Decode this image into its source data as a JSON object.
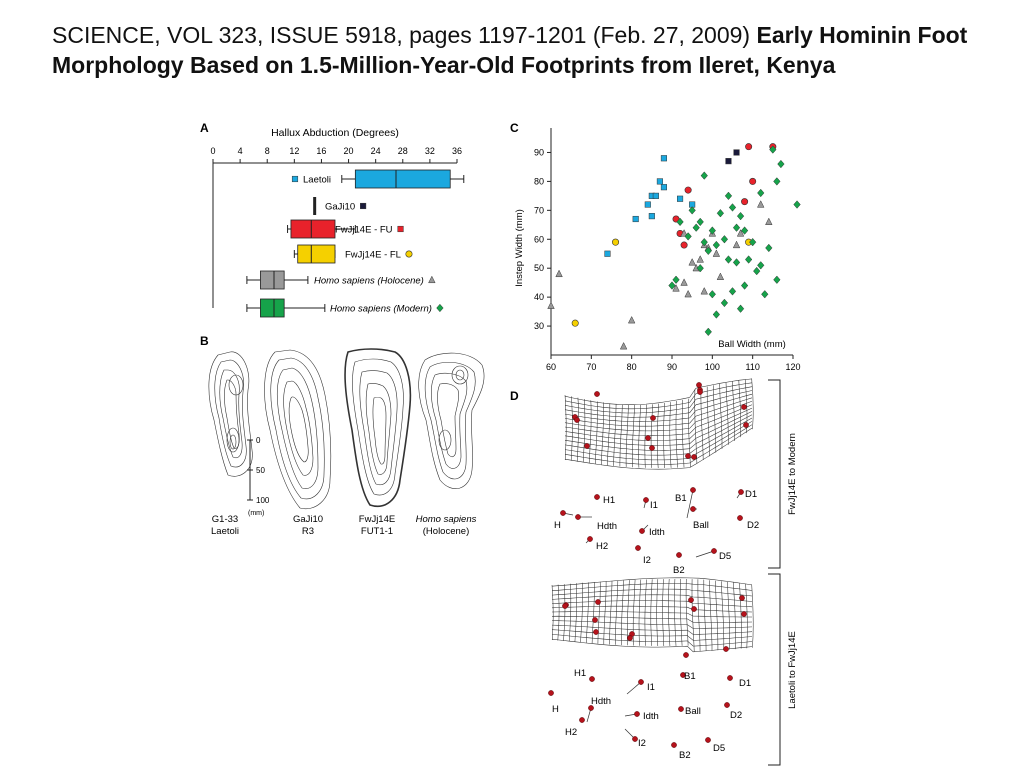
{
  "header": {
    "citation": "SCIENCE, VOL 323, ISSUE 5918,  pages 1197-1201 (Feb. 27, 2009) ",
    "title": "Early Hominin Foot Morphology Based on 1.5-Million-Year-Old Footprints from Ileret, Kenya"
  },
  "panel_labels": {
    "a": "A",
    "b": "B",
    "c": "C",
    "d": "D"
  },
  "colors": {
    "laetoli": "#1ba8df",
    "gaji10": "#1a1a3a",
    "fu": "#e8222b",
    "fl": "#f5d000",
    "holocene": "#999999",
    "modern": "#16a34a",
    "landmark": "#b5121b"
  },
  "chart_data": [
    {
      "type": "box",
      "title": "Hallux Abduction (Degrees)",
      "xlim": [
        0,
        36
      ],
      "ticks": [
        0,
        4,
        8,
        12,
        16,
        20,
        24,
        28,
        32,
        36
      ],
      "series": [
        {
          "name": "Laetoli",
          "min": 19,
          "q1": 21,
          "median": 27,
          "q3": 35,
          "max": 37,
          "marker": "square"
        },
        {
          "name": "GaJi10",
          "min": 15,
          "q1": 15,
          "median": 15,
          "q3": 15,
          "max": 15,
          "marker": "square"
        },
        {
          "name": "FwJj14E - FU",
          "min": 11,
          "q1": 11.5,
          "median": 14.5,
          "q3": 18,
          "max": 21,
          "marker": "square"
        },
        {
          "name": "FwJj14E - FL",
          "min": 12,
          "q1": 12.5,
          "median": 14.5,
          "q3": 18,
          "max": 18,
          "marker": "circle"
        },
        {
          "name": "Homo sapiens (Holocene)",
          "min": 5,
          "q1": 7,
          "median": 9,
          "q3": 10.5,
          "max": 14,
          "marker": "triangle"
        },
        {
          "name": "Homo sapiens (Modern)",
          "min": 5,
          "q1": 7,
          "median": 9,
          "q3": 10.5,
          "max": 16.5,
          "marker": "diamond"
        }
      ]
    },
    {
      "type": "scatter",
      "xlabel": "Ball Width (mm)",
      "ylabel": "Instep Width (mm)",
      "xlim": [
        60,
        120
      ],
      "ylim": [
        20,
        95
      ],
      "xticks": [
        60,
        70,
        80,
        90,
        100,
        110,
        120
      ],
      "yticks": [
        30,
        40,
        50,
        60,
        70,
        80,
        90
      ],
      "series": [
        {
          "name": "Laetoli",
          "marker": "square",
          "points": [
            [
              88,
              88
            ],
            [
              87,
              80
            ],
            [
              88,
              78
            ],
            [
              85,
              75
            ],
            [
              84,
              72
            ],
            [
              85,
              68
            ],
            [
              81,
              67
            ],
            [
              92,
              74
            ],
            [
              95,
              72
            ],
            [
              86,
              75
            ],
            [
              74,
              55
            ]
          ]
        },
        {
          "name": "GaJi10",
          "marker": "square",
          "points": [
            [
              106,
              90
            ],
            [
              104,
              87
            ]
          ]
        },
        {
          "name": "FwJj14E - FU",
          "marker": "circle",
          "points": [
            [
              115,
              92
            ],
            [
              109,
              92
            ],
            [
              110,
              80
            ],
            [
              108,
              73
            ],
            [
              94,
              77
            ],
            [
              91,
              67
            ],
            [
              92,
              62
            ],
            [
              93,
              58
            ]
          ]
        },
        {
          "name": "FwJj14E - FL",
          "marker": "circle",
          "points": [
            [
              76,
              59
            ],
            [
              66,
              31
            ],
            [
              109,
              59
            ]
          ]
        },
        {
          "name": "Homo sapiens (Holocene)",
          "marker": "triangle",
          "points": [
            [
              62,
              48
            ],
            [
              60,
              37
            ],
            [
              78,
              23
            ],
            [
              80,
              32
            ],
            [
              93,
              62
            ],
            [
              98,
              58
            ],
            [
              99,
              57
            ],
            [
              100,
              62
            ],
            [
              95,
              52
            ],
            [
              96,
              50
            ],
            [
              97,
              53
            ],
            [
              101,
              55
            ],
            [
              93,
              45
            ],
            [
              94,
              41
            ],
            [
              98,
              42
            ],
            [
              102,
              47
            ],
            [
              91,
              43
            ],
            [
              107,
              62
            ],
            [
              112,
              72
            ],
            [
              114,
              66
            ],
            [
              106,
              58
            ]
          ]
        },
        {
          "name": "Homo sapiens (Modern)",
          "marker": "diamond",
          "points": [
            [
              98,
              82
            ],
            [
              104,
              75
            ],
            [
              102,
              69
            ],
            [
              95,
              70
            ],
            [
              97,
              66
            ],
            [
              100,
              63
            ],
            [
              103,
              60
            ],
            [
              98,
              59
            ],
            [
              96,
              64
            ],
            [
              94,
              61
            ],
            [
              92,
              66
            ],
            [
              105,
              71
            ],
            [
              107,
              68
            ],
            [
              106,
              64
            ],
            [
              108,
              63
            ],
            [
              110,
              59
            ],
            [
              109,
              53
            ],
            [
              111,
              49
            ],
            [
              108,
              44
            ],
            [
              105,
              42
            ],
            [
              103,
              38
            ],
            [
              101,
              34
            ],
            [
              99,
              28
            ],
            [
              112,
              51
            ],
            [
              116,
              46
            ],
            [
              112,
              76
            ],
            [
              116,
              80
            ],
            [
              117,
              86
            ],
            [
              121,
              72
            ],
            [
              115,
              91
            ],
            [
              101,
              58
            ],
            [
              99,
              56
            ],
            [
              97,
              50
            ],
            [
              104,
              53
            ],
            [
              106,
              52
            ],
            [
              90,
              44
            ],
            [
              91,
              46
            ],
            [
              100,
              41
            ],
            [
              107,
              36
            ],
            [
              113,
              41
            ],
            [
              114,
              57
            ]
          ]
        }
      ]
    }
  ],
  "panel_b": {
    "labels": [
      {
        "line1": "G1-33",
        "line2": "Laetoli"
      },
      {
        "line1": "GaJi10",
        "line2": "R3"
      },
      {
        "line1": "FwJj14E",
        "line2": "FUT1-1"
      },
      {
        "line1": "Homo sapiens",
        "line2": "(Holocene)"
      }
    ],
    "scale_ticks": [
      "0",
      "50",
      "100"
    ],
    "scale_unit": "(mm)"
  },
  "panel_d": {
    "side_labels": [
      "FwJj14E to Modern",
      "Laetoli to FwJj14E"
    ],
    "landmarks_1": [
      "H1",
      "I1",
      "B1",
      "D1",
      "H",
      "Hdth",
      "Idth",
      "Ball",
      "D2",
      "H2",
      "I2",
      "B2",
      "D5"
    ],
    "landmarks_2": [
      "H1",
      "I1",
      "B1",
      "D1",
      "H",
      "Hdth",
      "Idth",
      "Ball",
      "D2",
      "H2",
      "I2",
      "B2",
      "D5"
    ]
  }
}
